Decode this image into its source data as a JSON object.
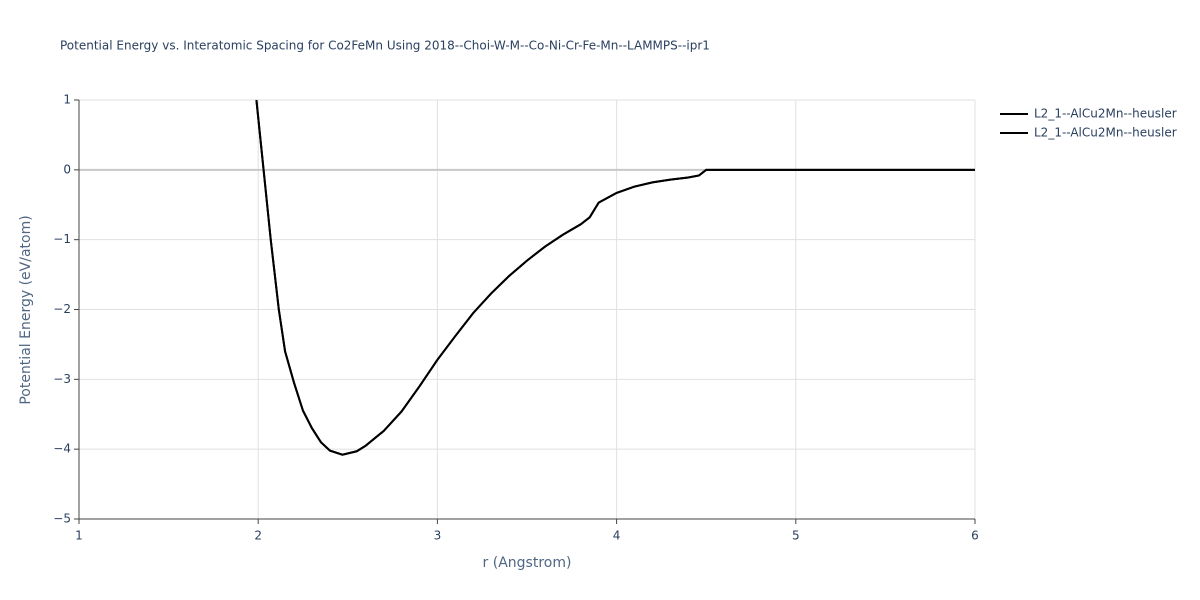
{
  "chart_data": {
    "type": "line",
    "title": "Potential Energy vs. Interatomic Spacing for Co2FeMn Using 2018--Choi-W-M--Co-Ni-Cr-Fe-Mn--LAMMPS--ipr1",
    "x_label": "r (Angstrom)",
    "y_label": "Potential Energy (eV/atom)",
    "xlim": [
      1,
      6
    ],
    "ylim": [
      -5,
      1
    ],
    "xticks": [
      1,
      2,
      3,
      4,
      5,
      6
    ],
    "yticks": [
      {
        "value": -5,
        "label": "−5"
      },
      {
        "value": -4,
        "label": "−4"
      },
      {
        "value": -3,
        "label": "−3"
      },
      {
        "value": -2,
        "label": "−2"
      },
      {
        "value": -1,
        "label": "−1"
      },
      0,
      1
    ],
    "grid": true,
    "legend": "top-right",
    "series": [
      {
        "name": "L2_1--AlCu2Mn--heusler",
        "color": "#000000",
        "x": [
          1.99,
          2.03,
          2.07,
          2.115,
          2.15,
          2.2,
          2.25,
          2.3,
          2.35,
          2.4,
          2.47,
          2.55,
          2.6,
          2.7,
          2.8,
          2.9,
          3.0,
          3.1,
          3.2,
          3.3,
          3.4,
          3.5,
          3.6,
          3.7,
          3.8,
          3.85,
          3.9,
          4.0,
          4.1,
          4.2,
          4.3,
          4.4,
          4.46,
          4.5,
          5,
          6
        ],
        "values": [
          1,
          0,
          -1,
          -2,
          -2.6,
          -3.05,
          -3.45,
          -3.7,
          -3.9,
          -4.02,
          -4.08,
          -4.03,
          -3.95,
          -3.74,
          -3.46,
          -3.1,
          -2.72,
          -2.38,
          -2.05,
          -1.77,
          -1.52,
          -1.3,
          -1.1,
          -0.93,
          -0.78,
          -0.68,
          -0.47,
          -0.33,
          -0.24,
          -0.18,
          -0.14,
          -0.11,
          -0.08,
          0,
          0,
          0
        ]
      },
      {
        "name": "L2_1--AlCu2Mn--heusler",
        "color": "#000000",
        "x": [
          1.99,
          2.03,
          2.07,
          2.115,
          2.15,
          2.2,
          2.25,
          2.3,
          2.35,
          2.4,
          2.47,
          2.55,
          2.6,
          2.7,
          2.8,
          2.9,
          3.0,
          3.1,
          3.2,
          3.3,
          3.4,
          3.5,
          3.6,
          3.7,
          3.8,
          3.85,
          3.9,
          4.0,
          4.1,
          4.2,
          4.3,
          4.4,
          4.46,
          4.5,
          5,
          6
        ],
        "values": [
          1,
          0,
          -1,
          -2,
          -2.6,
          -3.05,
          -3.45,
          -3.7,
          -3.9,
          -4.02,
          -4.08,
          -4.03,
          -3.95,
          -3.74,
          -3.46,
          -3.1,
          -2.72,
          -2.38,
          -2.05,
          -1.77,
          -1.52,
          -1.3,
          -1.1,
          -0.93,
          -0.78,
          -0.68,
          -0.47,
          -0.33,
          -0.24,
          -0.18,
          -0.14,
          -0.11,
          -0.08,
          0,
          0,
          0
        ]
      }
    ]
  }
}
